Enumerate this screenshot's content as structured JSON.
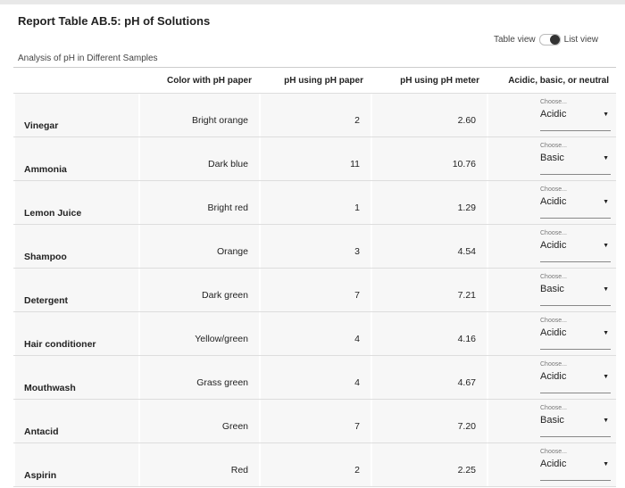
{
  "header": {
    "title": "Report Table AB.5: pH of Solutions",
    "toggle": {
      "left": "Table view",
      "right": "List view"
    }
  },
  "table": {
    "caption": "Analysis of pH in Different Samples",
    "columns": [
      "Color with pH paper",
      "pH using pH paper",
      "pH using pH meter",
      "Acidic, basic, or neutral"
    ],
    "placeholder": "Choose...",
    "rows": [
      [
        "Vinegar",
        "Bright orange",
        "2",
        "2.60",
        "Acidic"
      ],
      [
        "Ammonia",
        "Dark blue",
        "11",
        "10.76",
        "Basic"
      ],
      [
        "Lemon Juice",
        "Bright red",
        "1",
        "1.29",
        "Acidic"
      ],
      [
        "Shampoo",
        "Orange",
        "3",
        "4.54",
        "Acidic"
      ],
      [
        "Detergent",
        "Dark green",
        "7",
        "7.21",
        "Basic"
      ],
      [
        "Hair conditioner",
        "Yellow/green",
        "4",
        "4.16",
        "Acidic"
      ],
      [
        "Mouthwash",
        "Grass green",
        "4",
        "4.67",
        "Acidic"
      ],
      [
        "Antacid",
        "Green",
        "7",
        "7.20",
        "Basic"
      ],
      [
        "Aspirin",
        "Red",
        "2",
        "2.25",
        "Acidic"
      ]
    ]
  }
}
